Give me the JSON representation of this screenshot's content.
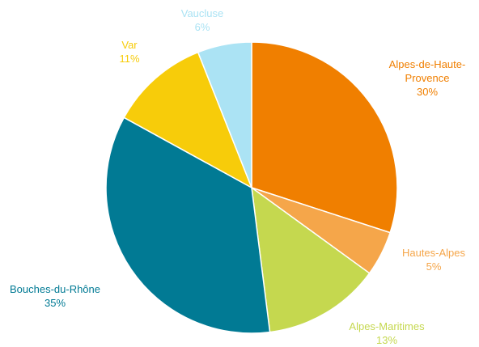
{
  "chart_data": {
    "type": "pie",
    "categories": [
      "Alpes-de-Haute-Provence",
      "Hautes-Alpes",
      "Alpes-Maritimes",
      "Bouches-du-Rhône",
      "Var",
      "Vaucluse"
    ],
    "values": [
      30,
      5,
      13,
      35,
      11,
      6
    ],
    "value_labels": [
      "30%",
      "5%",
      "13%",
      "35%",
      "11%",
      "6%"
    ],
    "colors": [
      "#f07f00",
      "#f5a64a",
      "#c5d84f",
      "#017a94",
      "#f7cc0a",
      "#abe3f4"
    ]
  }
}
